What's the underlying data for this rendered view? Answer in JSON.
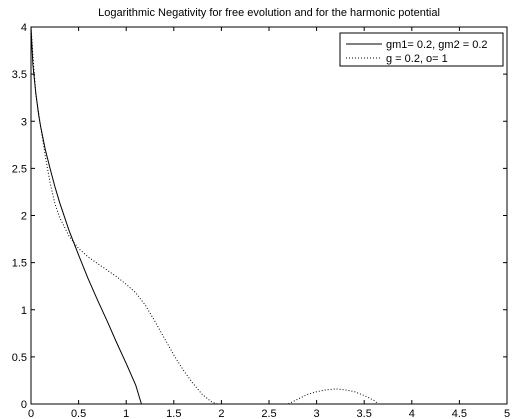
{
  "chart_data": {
    "type": "line",
    "title": "Logarithmic Negativity for free evolution and for the harmonic potential",
    "xlabel": "",
    "ylabel": "",
    "xlim": [
      0,
      5
    ],
    "ylim": [
      0,
      4
    ],
    "xticks": [
      "0",
      "0.5",
      "1",
      "1.5",
      "2",
      "2.5",
      "3",
      "3.5",
      "4",
      "4.5",
      "5"
    ],
    "yticks": [
      "0",
      "0.5",
      "1",
      "1.5",
      "2",
      "2.5",
      "3",
      "3.5",
      "4"
    ],
    "grid": false,
    "legend_position": "top-right",
    "series": [
      {
        "name": "gm1= 0.2, gm2 = 0.2",
        "style": "solid",
        "color": "#000000",
        "x": [
          0,
          0.02,
          0.05,
          0.08,
          0.1,
          0.15,
          0.2,
          0.25,
          0.3,
          0.4,
          0.5,
          0.6,
          0.7,
          0.8,
          0.9,
          1.0,
          1.1,
          1.16
        ],
        "y": [
          4.0,
          3.6,
          3.3,
          3.07,
          2.95,
          2.7,
          2.5,
          2.31,
          2.14,
          1.84,
          1.58,
          1.33,
          1.1,
          0.88,
          0.65,
          0.43,
          0.2,
          0.0
        ]
      },
      {
        "name": "g = 0.2, o= 1",
        "style": "dotted",
        "color": "#000000",
        "x": [
          0,
          0.02,
          0.05,
          0.1,
          0.15,
          0.2,
          0.25,
          0.3,
          0.4,
          0.5,
          0.6,
          0.7,
          0.8,
          0.9,
          1.0,
          1.1,
          1.2,
          1.3,
          1.4,
          1.5,
          1.6,
          1.7,
          1.8,
          1.9,
          1.96,
          2.7,
          2.8,
          2.9,
          3.0,
          3.1,
          3.2,
          3.3,
          3.4,
          3.5,
          3.6,
          3.65
        ],
        "y": [
          4.0,
          3.7,
          3.3,
          2.95,
          2.63,
          2.35,
          2.13,
          1.98,
          1.78,
          1.65,
          1.56,
          1.49,
          1.42,
          1.35,
          1.27,
          1.18,
          1.05,
          0.88,
          0.7,
          0.52,
          0.36,
          0.22,
          0.1,
          0.02,
          0.0,
          0.0,
          0.05,
          0.1,
          0.13,
          0.15,
          0.16,
          0.15,
          0.13,
          0.09,
          0.04,
          0.0
        ]
      }
    ]
  }
}
